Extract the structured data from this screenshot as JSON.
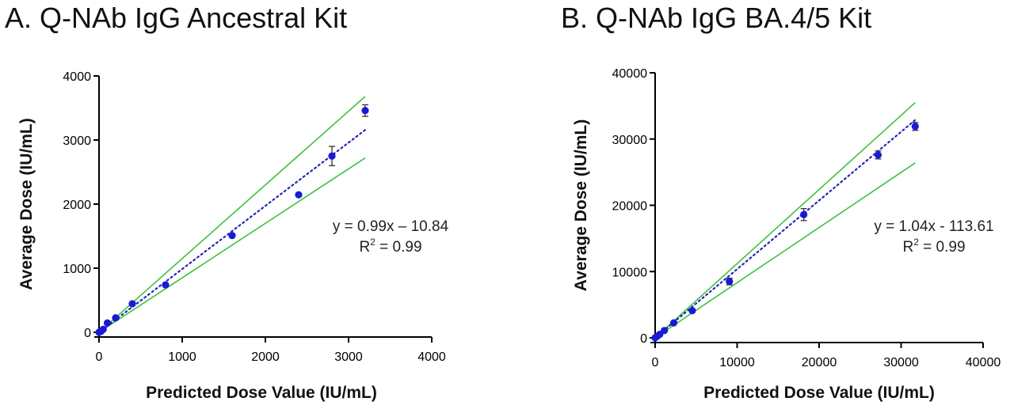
{
  "chart_data": [
    {
      "type": "scatter",
      "panel_title": "A. Q-NAb IgG Ancestral Kit",
      "xlabel": "Predicted Dose Value  (IU/mL)",
      "ylabel": "Average  Dose (IU/mL)",
      "xlim": [
        0,
        4000
      ],
      "ylim": [
        0,
        4000
      ],
      "xticks": [
        0,
        1000,
        2000,
        3000,
        4000
      ],
      "yticks": [
        0,
        1000,
        2000,
        3000,
        4000
      ],
      "grid": false,
      "point_color": "#1a1ad6",
      "trend_color": "#2424b8",
      "band_color": "#3cc23c",
      "points": [
        {
          "x": 0,
          "y": 0,
          "err": 0
        },
        {
          "x": 25,
          "y": 15,
          "err": 0
        },
        {
          "x": 50,
          "y": 45,
          "err": 0
        },
        {
          "x": 100,
          "y": 145,
          "err": 0
        },
        {
          "x": 200,
          "y": 225,
          "err": 0
        },
        {
          "x": 400,
          "y": 445,
          "err": 0
        },
        {
          "x": 800,
          "y": 740,
          "err": 0
        },
        {
          "x": 1600,
          "y": 1510,
          "err": 0
        },
        {
          "x": 2400,
          "y": 2145,
          "err": 0
        },
        {
          "x": 2800,
          "y": 2750,
          "err": 150
        },
        {
          "x": 3200,
          "y": 3460,
          "err": 90
        }
      ],
      "trend": {
        "slope": 0.99,
        "intercept": -10.84,
        "x_range": [
          0,
          3200
        ]
      },
      "band_upper": [
        [
          0,
          0
        ],
        [
          3200,
          3680
        ]
      ],
      "band_lower": [
        [
          0,
          0
        ],
        [
          3200,
          2720
        ]
      ],
      "equation": "y = 0.99x – 10.84",
      "r2_prefix": "R",
      "r2_sup": "2",
      "r2_suffix": " = 0.99"
    },
    {
      "type": "scatter",
      "panel_title": "B. Q-NAb IgG BA.4/5 Kit",
      "xlabel": "Predicted Dose Value  (IU/mL)",
      "ylabel": "Average  Dose (IU/mL)",
      "xlim": [
        0,
        40000
      ],
      "ylim": [
        0,
        40000
      ],
      "xticks": [
        0,
        10000,
        20000,
        30000,
        40000
      ],
      "yticks": [
        0,
        10000,
        20000,
        30000,
        40000
      ],
      "grid": false,
      "point_color": "#1a1ad6",
      "trend_color": "#2424b8",
      "band_color": "#3cc23c",
      "points": [
        {
          "x": 0,
          "y": 0,
          "err": 0
        },
        {
          "x": 280,
          "y": 250,
          "err": 0
        },
        {
          "x": 560,
          "y": 520,
          "err": 0
        },
        {
          "x": 1130,
          "y": 1100,
          "err": 0
        },
        {
          "x": 2270,
          "y": 2250,
          "err": 0
        },
        {
          "x": 4530,
          "y": 4100,
          "err": 0
        },
        {
          "x": 9060,
          "y": 8500,
          "err": 500
        },
        {
          "x": 18130,
          "y": 18600,
          "err": 900
        },
        {
          "x": 27190,
          "y": 27600,
          "err": 600
        },
        {
          "x": 31720,
          "y": 31900,
          "err": 600
        }
      ],
      "trend": {
        "slope": 1.04,
        "intercept": -113.61,
        "x_range": [
          0,
          31720
        ]
      },
      "band_upper": [
        [
          0,
          0
        ],
        [
          31720,
          35500
        ]
      ],
      "band_lower": [
        [
          0,
          0
        ],
        [
          31720,
          26400
        ]
      ],
      "equation": "y = 1.04x - 113.61",
      "r2_prefix": "R",
      "r2_sup": "2",
      "r2_suffix": " = 0.99"
    }
  ]
}
